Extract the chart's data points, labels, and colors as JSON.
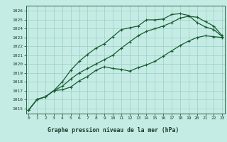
{
  "title": "Graphe pression niveau de la mer (hPa)",
  "background_color": "#c5ece4",
  "grid_color": "#9fd4cc",
  "line_color": "#1a5c30",
  "x_ticks": [
    0,
    1,
    2,
    3,
    4,
    5,
    6,
    7,
    8,
    9,
    10,
    11,
    12,
    13,
    14,
    15,
    16,
    17,
    18,
    19,
    20,
    21,
    22,
    23
  ],
  "y_ticks": [
    1015,
    1016,
    1017,
    1018,
    1019,
    1020,
    1021,
    1022,
    1023,
    1024,
    1025,
    1026
  ],
  "ylim": [
    1014.4,
    1026.6
  ],
  "xlim": [
    -0.3,
    23.3
  ],
  "series1_y": [
    1014.8,
    1016.0,
    1016.3,
    1017.0,
    1017.1,
    1017.4,
    1018.1,
    1018.6,
    1019.3,
    1019.7,
    1019.5,
    1019.4,
    1019.2,
    1019.6,
    1019.9,
    1020.3,
    1020.9,
    1021.5,
    1022.1,
    1022.6,
    1023.0,
    1023.2,
    1023.1,
    1023.0
  ],
  "series2_y": [
    1014.8,
    1016.0,
    1016.3,
    1017.0,
    1017.5,
    1018.3,
    1019.0,
    1019.5,
    1020.0,
    1020.5,
    1021.0,
    1021.8,
    1022.5,
    1023.2,
    1023.7,
    1024.0,
    1024.3,
    1024.7,
    1025.2,
    1025.4,
    1025.3,
    1024.8,
    1024.3,
    1023.2
  ],
  "series3_y": [
    1014.8,
    1016.0,
    1016.3,
    1017.0,
    1018.0,
    1019.3,
    1020.3,
    1021.1,
    1021.8,
    1022.3,
    1023.1,
    1023.9,
    1024.1,
    1024.3,
    1025.0,
    1025.0,
    1025.1,
    1025.6,
    1025.7,
    1025.5,
    1024.7,
    1024.2,
    1023.9,
    1023.1
  ],
  "title_bg": "#ffffff",
  "title_color": "#1a3a2a",
  "title_fontsize": 5.8,
  "tick_fontsize": 4.5,
  "linewidth": 0.9,
  "markersize": 3.5
}
